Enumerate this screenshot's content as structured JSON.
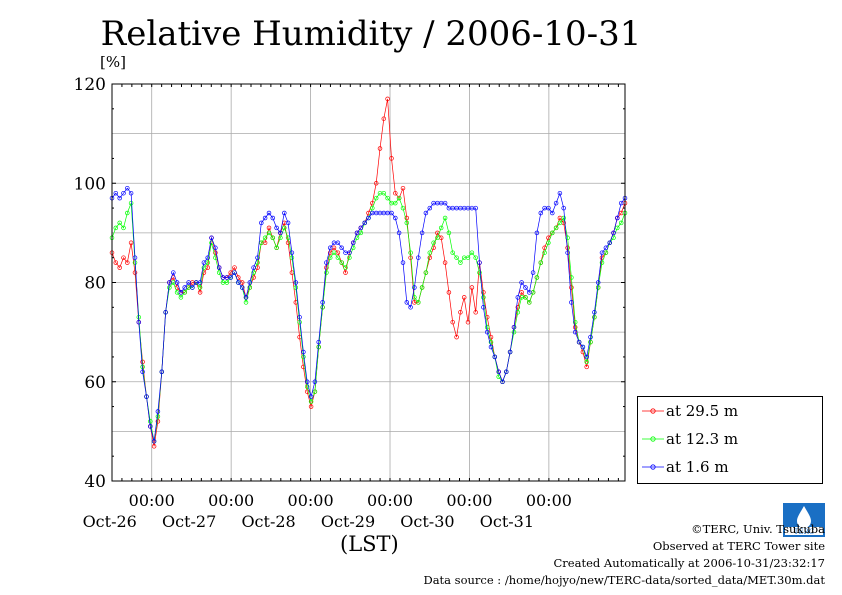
{
  "chart_data": {
    "type": "line",
    "title": "Relative Humidity / 2006-10-31",
    "ylabel": "[%]",
    "xlabel": "(LST)",
    "ylim": [
      40,
      120
    ],
    "yticks": [
      40,
      60,
      80,
      100,
      120
    ],
    "x_start": "2006-10-25T12:00",
    "x_end": "2006-10-31T23:00",
    "time_ticks": [
      "00:00",
      "00:00",
      "00:00",
      "00:00",
      "00:00",
      "00:00"
    ],
    "day_labels": [
      "Oct-26",
      "Oct-27",
      "Oct-28",
      "Oct-29",
      "Oct-30",
      "Oct-31"
    ],
    "grid": true,
    "legend_position": "right-bottom",
    "series": [
      {
        "name": "at 29.5 m",
        "color": "#ff0000",
        "values": [
          86,
          84,
          83,
          85,
          84,
          88,
          82,
          72,
          64,
          57,
          51,
          47,
          52,
          62,
          74,
          80,
          81,
          79,
          78,
          78,
          79,
          80,
          80,
          78,
          82,
          83,
          89,
          86,
          83,
          81,
          81,
          82,
          83,
          81,
          80,
          77,
          79,
          81,
          83,
          88,
          88,
          91,
          89,
          87,
          90,
          92,
          88,
          82,
          76,
          69,
          63,
          58,
          55,
          58,
          67,
          75,
          83,
          86,
          87,
          86,
          84,
          82,
          86,
          88,
          90,
          91,
          92,
          94,
          96,
          100,
          107,
          113,
          117,
          105,
          98,
          97,
          99,
          93,
          85,
          76,
          76,
          79,
          82,
          85,
          87,
          90,
          89,
          84,
          78,
          72,
          69,
          74,
          77,
          72,
          79,
          74,
          84,
          78,
          73,
          69,
          65,
          62,
          60,
          62,
          66,
          71,
          75,
          78,
          77,
          76,
          78,
          81,
          84,
          87,
          89,
          90,
          91,
          93,
          92,
          87,
          79,
          71,
          68,
          66,
          63,
          68,
          73,
          79,
          85,
          86,
          88,
          90,
          93,
          94,
          96
        ]
      },
      {
        "name": "at 12.3 m",
        "color": "#00ff00",
        "values": [
          89,
          91,
          92,
          91,
          94,
          96,
          84,
          73,
          63,
          57,
          52,
          48,
          53,
          62,
          74,
          79,
          80,
          78,
          77,
          78,
          79,
          79,
          80,
          79,
          83,
          84,
          88,
          85,
          82,
          80,
          80,
          81,
          82,
          80,
          79,
          76,
          79,
          82,
          84,
          88,
          89,
          90,
          89,
          87,
          89,
          91,
          89,
          85,
          79,
          72,
          65,
          59,
          56,
          58,
          67,
          75,
          82,
          85,
          86,
          85,
          84,
          83,
          85,
          87,
          89,
          90,
          92,
          93,
          95,
          97,
          98,
          98,
          97,
          96,
          96,
          97,
          95,
          92,
          86,
          77,
          76,
          79,
          82,
          86,
          88,
          89,
          91,
          93,
          90,
          86,
          85,
          84,
          85,
          85,
          86,
          85,
          82,
          77,
          71,
          68,
          65,
          61,
          60,
          62,
          66,
          70,
          74,
          77,
          77,
          76,
          78,
          81,
          84,
          86,
          88,
          90,
          91,
          92,
          93,
          89,
          81,
          72,
          68,
          67,
          64,
          68,
          73,
          79,
          84,
          86,
          88,
          89,
          91,
          92,
          94
        ]
      },
      {
        "name": "at 1.6 m",
        "color": "#0000ff",
        "values": [
          97,
          98,
          97,
          98,
          99,
          98,
          85,
          72,
          62,
          57,
          51,
          48,
          54,
          62,
          74,
          80,
          82,
          80,
          78,
          79,
          80,
          79,
          80,
          80,
          84,
          85,
          89,
          87,
          83,
          81,
          81,
          81,
          82,
          80,
          79,
          77,
          80,
          83,
          85,
          92,
          93,
          94,
          93,
          91,
          90,
          94,
          92,
          86,
          80,
          73,
          66,
          60,
          57,
          60,
          68,
          76,
          84,
          87,
          88,
          88,
          87,
          86,
          86,
          88,
          90,
          91,
          92,
          93,
          94,
          94,
          94,
          94,
          94,
          94,
          93,
          90,
          84,
          76,
          75,
          79,
          85,
          90,
          94,
          95,
          96,
          96,
          96,
          96,
          95,
          95,
          95,
          95,
          95,
          95,
          95,
          95,
          84,
          75,
          70,
          67,
          65,
          62,
          60,
          62,
          66,
          71,
          77,
          80,
          79,
          78,
          82,
          90,
          94,
          95,
          95,
          94,
          96,
          98,
          95,
          86,
          76,
          70,
          68,
          67,
          65,
          69,
          74,
          80,
          86,
          87,
          88,
          90,
          93,
          96,
          97
        ]
      }
    ]
  },
  "footer": {
    "copyright": "©TERC, Univ. Tsukuba",
    "observed": "Observed at TERC Tower site",
    "created": "Created Automatically at 2006-10-31/23:32:17",
    "source": "Data source : /home/hojyo/new/TERC-data/sorted_data/MET.30m.dat"
  },
  "logo": {
    "name": "terc-logo-icon",
    "text": "TERC",
    "color": "#1a6fc4"
  }
}
